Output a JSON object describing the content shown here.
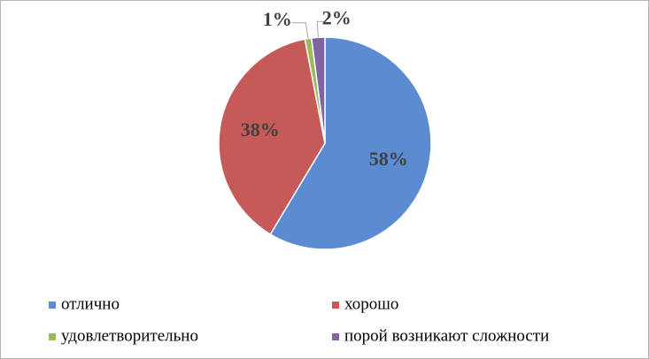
{
  "chart_data": {
    "type": "pie",
    "categories": [
      "отлично",
      "хорошо",
      "удовлетворительно",
      "порой возникают сложности"
    ],
    "values": [
      58,
      38,
      1,
      2
    ],
    "value_labels": [
      "58%",
      "38%",
      "1%",
      "2%"
    ],
    "colors": [
      "#5b8bd0",
      "#c55a58",
      "#9bbb59",
      "#8064a2"
    ],
    "legend": "bottom"
  }
}
